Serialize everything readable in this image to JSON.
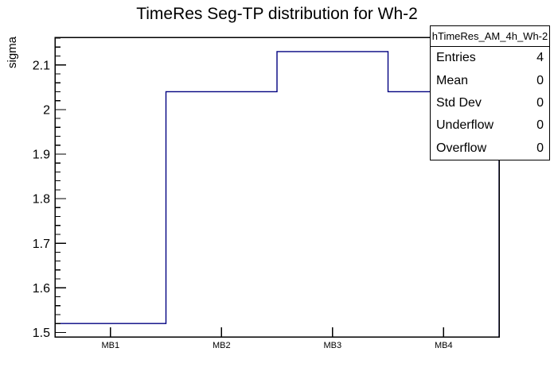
{
  "title": "TimeRes Seg-TP distribution for Wh-2",
  "colors": {
    "histogram_line": "#000080",
    "frame": "#000000",
    "background": "#ffffff",
    "text": "#000000"
  },
  "stats": {
    "header": "hTimeRes_AM_4h_Wh-2",
    "rows": [
      {
        "label": "Entries",
        "value": "4"
      },
      {
        "label": "Mean",
        "value": "0"
      },
      {
        "label": "Std Dev",
        "value": "0"
      },
      {
        "label": "Underflow",
        "value": "0"
      },
      {
        "label": "Overflow",
        "value": "0"
      }
    ]
  },
  "chart_data": {
    "type": "bar",
    "style": "step-histogram-outline",
    "title": "TimeRes Seg-TP distribution for Wh-2",
    "xlabel": "",
    "ylabel": "sigma",
    "categories": [
      "MB1",
      "MB2",
      "MB3",
      "MB4"
    ],
    "values": [
      1.52,
      2.04,
      2.13,
      2.04
    ],
    "ylim": [
      1.49,
      2.162
    ],
    "yticks_major": [
      1.5,
      1.6,
      1.7,
      1.8,
      1.9,
      2,
      2.1
    ],
    "ytick_labels": [
      "1.5",
      "1.6",
      "1.7",
      "1.8",
      "1.9",
      "2",
      "2.1"
    ],
    "y_minor_step": 0.02,
    "grid": false,
    "legend": false,
    "stats_box": {
      "name": "hTimeRes_AM_4h_Wh-2",
      "entries": 4,
      "mean": 0,
      "std_dev": 0,
      "underflow": 0,
      "overflow": 0
    }
  }
}
